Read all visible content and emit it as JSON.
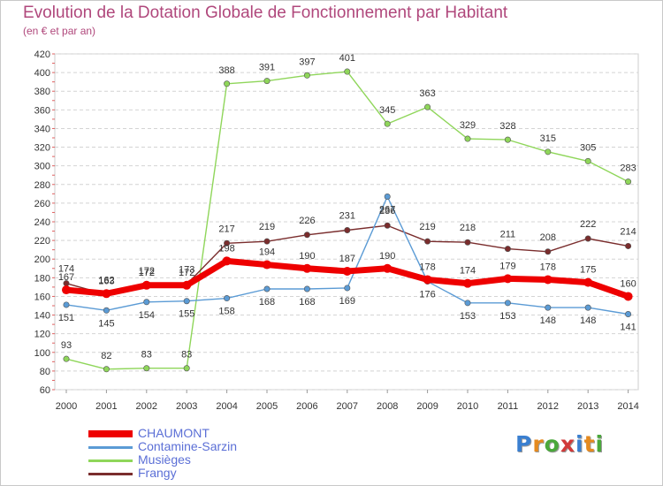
{
  "title": "Evolution de la Dotation Globale de Fonctionnement par Habitant",
  "subtitle": "(en € et par an)",
  "logo": {
    "text": "Proxiti",
    "letters": [
      {
        "ch": "P",
        "color": "#3a7fd0"
      },
      {
        "ch": "r",
        "color": "#e58a1f"
      },
      {
        "ch": "o",
        "color": "#4aa83b"
      },
      {
        "ch": "x",
        "color": "#d13a3a"
      },
      {
        "ch": "i",
        "color": "#3a7fd0"
      },
      {
        "ch": "t",
        "color": "#e58a1f"
      },
      {
        "ch": "i",
        "color": "#4aa83b"
      }
    ]
  },
  "chart_data": {
    "type": "line",
    "title": "Evolution de la Dotation Globale de Fonctionnement par Habitant",
    "subtitle": "(en € et par an)",
    "x": [
      "2000",
      "2001",
      "2002",
      "2003",
      "2004",
      "2005",
      "2006",
      "2007",
      "2008",
      "2009",
      "2010",
      "2011",
      "2012",
      "2013",
      "2014"
    ],
    "ylim": [
      60,
      420
    ],
    "yticks": [
      60,
      80,
      100,
      120,
      140,
      160,
      180,
      200,
      220,
      240,
      260,
      280,
      300,
      320,
      340,
      360,
      380,
      400,
      420
    ],
    "grid": "horizontal",
    "legend_position": "bottom-left",
    "series": [
      {
        "name": "Musièges",
        "color": "#8fd65a",
        "values": [
          93,
          82,
          83,
          83,
          388,
          391,
          397,
          401,
          345,
          363,
          329,
          328,
          315,
          305,
          283
        ]
      },
      {
        "name": "Frangy",
        "color": "#7a2d2d",
        "values": [
          174,
          162,
          172,
          173,
          217,
          219,
          226,
          231,
          236,
          219,
          218,
          211,
          208,
          222,
          214
        ]
      },
      {
        "name": "Contamine-Sarzin",
        "color": "#5b9bd5",
        "values": [
          151,
          145,
          154,
          155,
          158,
          168,
          168,
          169,
          267,
          176,
          153,
          153,
          148,
          148,
          141
        ]
      },
      {
        "name": "CHAUMONT",
        "color": "#ee0000",
        "values": [
          167,
          163,
          172,
          172,
          198,
          194,
          190,
          187,
          190,
          178,
          174,
          179,
          178,
          175,
          160
        ]
      }
    ],
    "legend_order": [
      "CHAUMONT",
      "Contamine-Sarzin",
      "Musièges",
      "Frangy"
    ]
  }
}
